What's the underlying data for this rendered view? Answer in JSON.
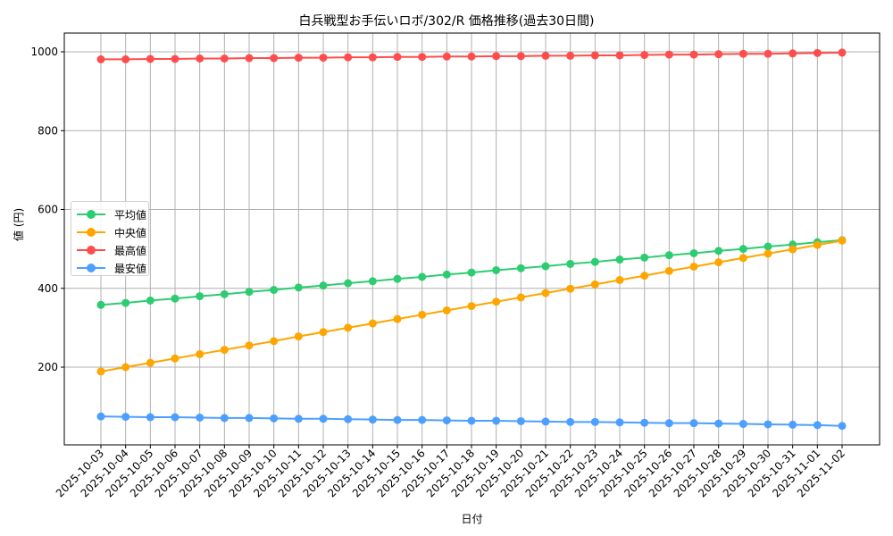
{
  "chart_data": {
    "type": "line",
    "title": "白兵戦型お手伝いロボ/302/R 価格推移(過去30日間)",
    "xlabel": "日付",
    "ylabel": "値 (円)",
    "ylim": [
      0,
      1040
    ],
    "yticks": [
      200,
      400,
      600,
      800,
      1000
    ],
    "grid": true,
    "legend_position": "center left",
    "categories": [
      "2025-10-03",
      "2025-10-04",
      "2025-10-05",
      "2025-10-06",
      "2025-10-07",
      "2025-10-08",
      "2025-10-09",
      "2025-10-10",
      "2025-10-11",
      "2025-10-12",
      "2025-10-13",
      "2025-10-14",
      "2025-10-15",
      "2025-10-16",
      "2025-10-17",
      "2025-10-18",
      "2025-10-19",
      "2025-10-20",
      "2025-10-21",
      "2025-10-22",
      "2025-10-23",
      "2025-10-24",
      "2025-10-25",
      "2025-10-26",
      "2025-10-27",
      "2025-10-28",
      "2025-10-29",
      "2025-10-30",
      "2025-10-31",
      "2025-11-01",
      "2025-11-02"
    ],
    "series": [
      {
        "name": "平均値",
        "color": "#2ecc71",
        "values": [
          358,
          363,
          369,
          374,
          380,
          385,
          391,
          396,
          402,
          407,
          413,
          418,
          424,
          429,
          435,
          440,
          446,
          451,
          456,
          462,
          467,
          473,
          478,
          484,
          489,
          495,
          500,
          506,
          511,
          517,
          522
        ]
      },
      {
        "name": "中央値",
        "color": "#ffa500",
        "values": [
          189,
          200,
          211,
          222,
          233,
          244,
          255,
          266,
          278,
          289,
          300,
          311,
          322,
          333,
          344,
          355,
          366,
          377,
          388,
          399,
          410,
          421,
          432,
          444,
          455,
          466,
          477,
          488,
          499,
          510,
          521
        ]
      },
      {
        "name": "最高値",
        "color": "#ff4d4d",
        "values": [
          981,
          981,
          982,
          982,
          983,
          983,
          984,
          984,
          985,
          985,
          986,
          986,
          987,
          987,
          988,
          988,
          989,
          989,
          990,
          990,
          991,
          991,
          992,
          993,
          993,
          994,
          995,
          995,
          996,
          997,
          998
        ]
      },
      {
        "name": "最安値",
        "color": "#4d9fff",
        "values": [
          75,
          74,
          73,
          73,
          72,
          71,
          71,
          70,
          69,
          69,
          68,
          67,
          66,
          66,
          65,
          64,
          64,
          63,
          62,
          61,
          61,
          60,
          59,
          58,
          58,
          57,
          56,
          55,
          54,
          53,
          51
        ]
      }
    ]
  },
  "legend": {
    "items": [
      {
        "label": "平均値",
        "color": "#2ecc71"
      },
      {
        "label": "中央値",
        "color": "#ffa500"
      },
      {
        "label": "最高値",
        "color": "#ff4d4d"
      },
      {
        "label": "最安値",
        "color": "#4d9fff"
      }
    ]
  }
}
